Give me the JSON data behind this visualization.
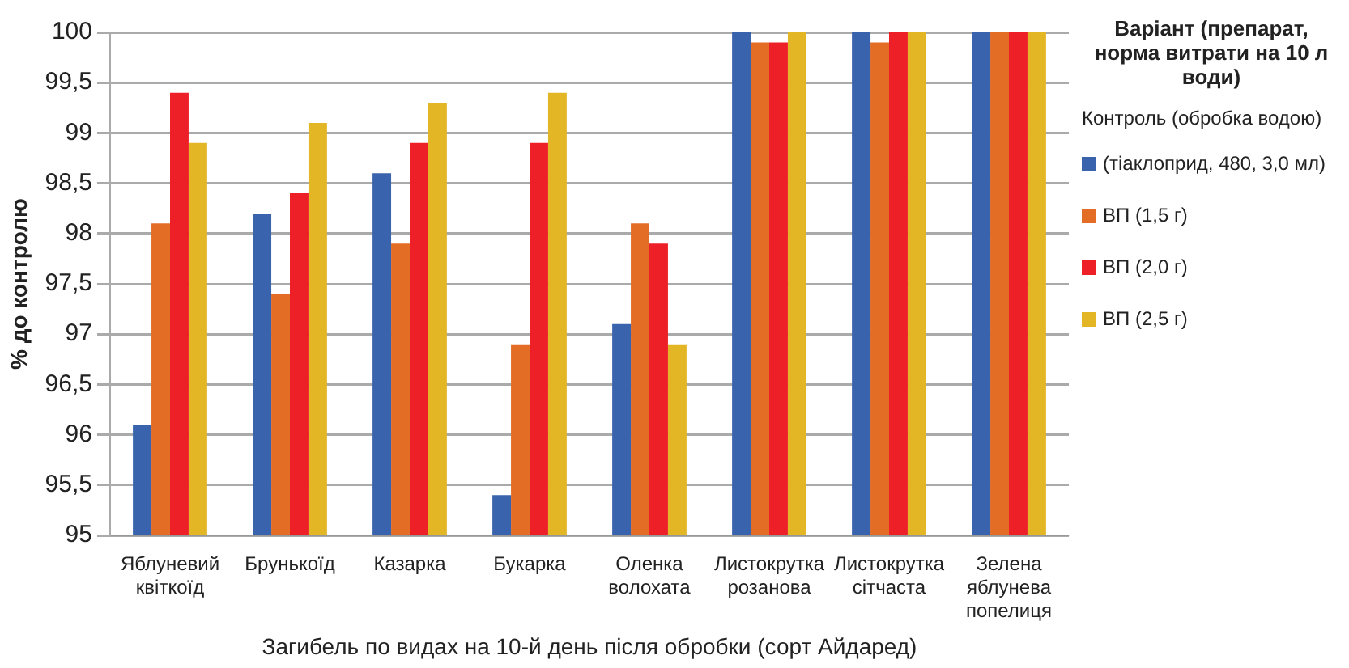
{
  "chart_data": {
    "type": "bar",
    "xlabel": "Загибель по видах на 10-й день після обробки (сорт Айдаред)",
    "ylabel": "% до контролю",
    "legend_title": "Варіант (препарат, норма витрати на 10 л води)",
    "annotations": [
      "Контроль (обробка водою)"
    ],
    "categories": [
      "Яблуневий квіткоїд",
      "Брунькоїд",
      "Казарка",
      "Букарка",
      "Оленка волохата",
      "Листокрутка розанова",
      "Листокрутка сітчаста",
      "Зелена яблунева попелиця"
    ],
    "series": [
      {
        "name": "(тіаклоприд, 480, 3,0 мл)",
        "color": "#3a63ae",
        "values": [
          96.1,
          98.2,
          98.6,
          95.4,
          97.1,
          100,
          100,
          100
        ]
      },
      {
        "name": "ВП (1,5 г)",
        "color": "#e46d26",
        "values": [
          98.1,
          97.4,
          97.9,
          96.9,
          98.1,
          99.9,
          99.9,
          100
        ]
      },
      {
        "name": "ВП (2,0 г)",
        "color": "#ed1f27",
        "values": [
          99.4,
          98.4,
          98.9,
          98.9,
          97.9,
          99.9,
          100,
          100
        ]
      },
      {
        "name": "ВП (2,5 г)",
        "color": "#e3b626",
        "values": [
          98.9,
          99.1,
          99.3,
          99.4,
          96.9,
          100,
          100,
          100
        ]
      }
    ],
    "ylim": [
      95,
      100
    ],
    "yticks": [
      95,
      {
        "value": 95.5,
        "label": "95,5"
      },
      96,
      {
        "value": 96.5,
        "label": "96,5"
      },
      97,
      {
        "value": 97.5,
        "label": "97,5"
      },
      98,
      {
        "value": 98.5,
        "label": "98,5"
      },
      99,
      {
        "value": 99.5,
        "label": "99,5"
      },
      100
    ],
    "grid": "y",
    "legend": "right"
  }
}
